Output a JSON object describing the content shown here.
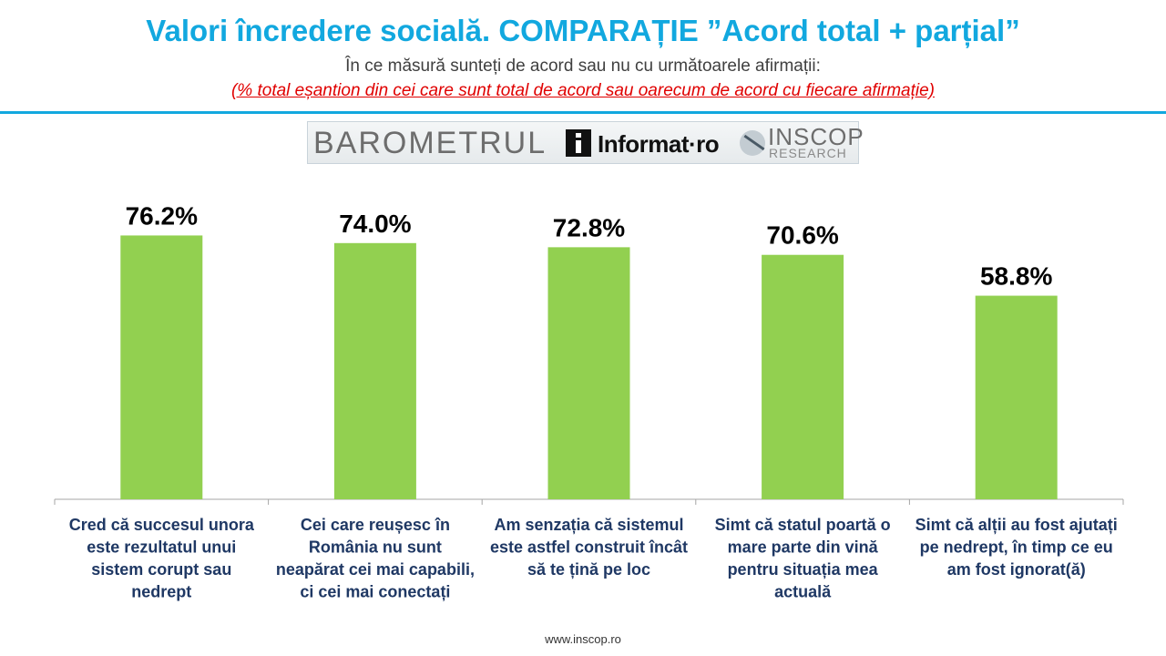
{
  "header": {
    "title": "Valori încredere socială. COMPARAȚIE ”Acord total + parțial”",
    "subtitle": "În ce măsură sunteți de acord sau nu cu următoarele afirmații:",
    "note": "(% total eșantion din cei care sunt total de acord sau oarecum de acord cu fiecare afirmație)"
  },
  "logo": {
    "barometer": "BAROMETRUL",
    "informat": "Informat·ro",
    "inscop": "INSCOP",
    "research": "RESEARCH"
  },
  "colors": {
    "title": "#12a8df",
    "bar": "#92d050",
    "note": "#e00000"
  },
  "chart_data": {
    "type": "bar",
    "categories": [
      "Cred că succesul unora este rezultatul unui sistem corupt sau nedrept",
      "Cei care reușesc în România nu sunt neapărat cei mai capabili, ci cei mai conectați",
      "Am senzația că sistemul este astfel construit încât să te țină pe loc",
      "Simt că statul poartă o mare parte din vină pentru situația mea actuală",
      "Simt că alții au fost ajutați pe nedrept, în timp ce eu am fost ignorat(ă)"
    ],
    "values": [
      76.2,
      74.0,
      72.8,
      70.6,
      58.8
    ],
    "data_labels": [
      "76.2%",
      "74.0%",
      "72.8%",
      "70.6%",
      "58.8%"
    ],
    "ylim": [
      0,
      100
    ],
    "grid": false,
    "legend": "none"
  },
  "footer": {
    "url": "www.inscop.ro"
  }
}
